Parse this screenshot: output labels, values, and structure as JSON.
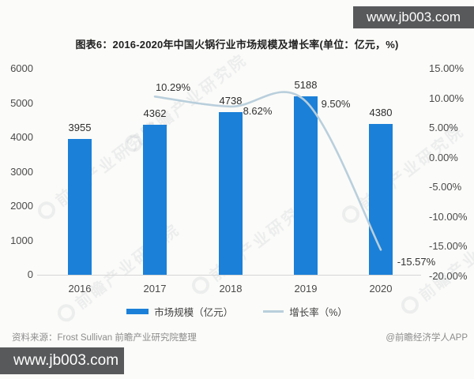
{
  "top_banner": {
    "text": "www.jb003.com"
  },
  "bottom_banner": {
    "text": "www.jb003.com"
  },
  "title": "图表6：2016-2020年中国火锅行业市场规模及增长率(单位：亿元，%)",
  "watermark": {
    "text": "前瞻产业研究院"
  },
  "legend": {
    "bar": "市场规模（亿元）",
    "line": "增长率（%）"
  },
  "source": "资料来源：Frost Sullivan 前瞻产业研究院整理",
  "credit": "@前瞻经济学人APP",
  "colors": {
    "bar": "#1b80d8",
    "line": "#b9cfdc",
    "banner": "#58595b"
  },
  "chart_data": {
    "type": "bar",
    "categories": [
      "2016",
      "2017",
      "2018",
      "2019",
      "2020"
    ],
    "series": [
      {
        "name": "市场规模（亿元）",
        "type": "bar",
        "values": [
          3955,
          4362,
          4738,
          5188,
          4380
        ]
      },
      {
        "name": "增长率（%）",
        "type": "line",
        "values": [
          null,
          10.29,
          8.62,
          9.5,
          -15.57
        ]
      }
    ],
    "bar_labels": [
      "3955",
      "4362",
      "4738",
      "5188",
      "4380"
    ],
    "line_labels": [
      "10.29%",
      "8.62%",
      "9.50%",
      "-15.57%"
    ],
    "left_axis": {
      "min": 0,
      "max": 6000,
      "ticks": [
        "6000",
        "5000",
        "4000",
        "3000",
        "2000",
        "1000",
        "0"
      ]
    },
    "right_axis": {
      "min": -20,
      "max": 15,
      "ticks": [
        "15.00%",
        "10.00%",
        "5.00%",
        "0.00%",
        "-5.00%",
        "-10.00%",
        "-15.00%",
        "-20.00%"
      ]
    },
    "title": "图表6：2016-2020年中国火锅行业市场规模及增长率(单位：亿元，%)",
    "grid": false,
    "legend_position": "bottom"
  }
}
